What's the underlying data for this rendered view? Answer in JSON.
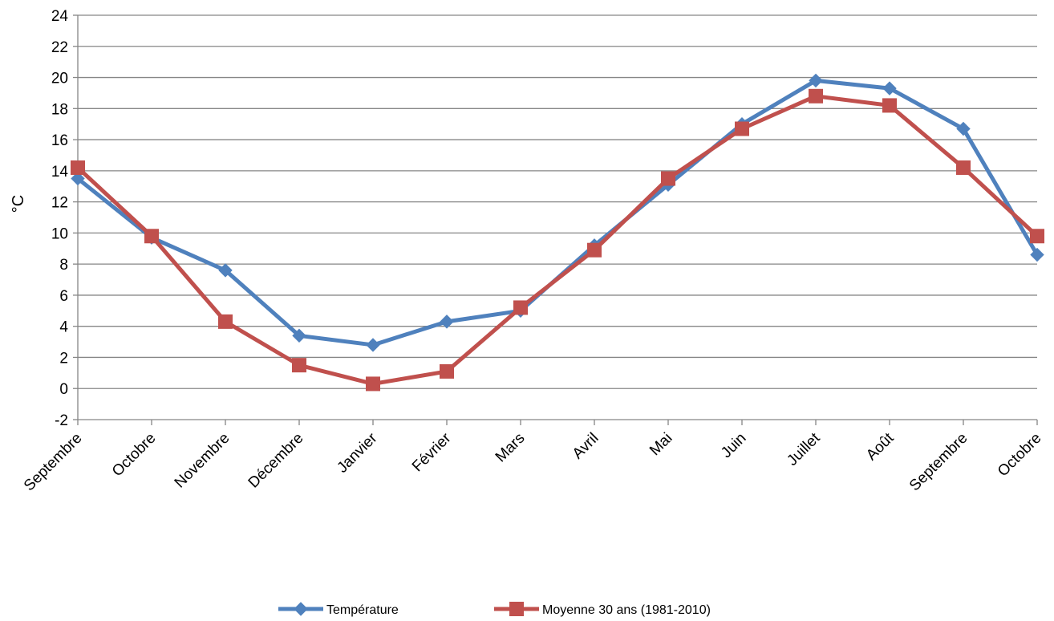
{
  "chart_data": {
    "type": "line",
    "title": "",
    "xlabel": "",
    "ylabel": "°C",
    "ylim": [
      -2,
      24
    ],
    "ytick_step": 2,
    "grid": "horizontal",
    "legend_position": "bottom",
    "categories": [
      "Septembre",
      "Octobre",
      "Novembre",
      "Décembre",
      "Janvier",
      "Février",
      "Mars",
      "Avril",
      "Mai",
      "Juin",
      "Juillet",
      "Août",
      "Septembre",
      "Octobre"
    ],
    "series": [
      {
        "name": "Température",
        "color": "#4F81BD",
        "marker": "diamond",
        "values": [
          13.5,
          9.7,
          7.6,
          3.4,
          2.8,
          4.3,
          5.0,
          9.2,
          13.1,
          17.0,
          19.8,
          19.3,
          16.7,
          8.6
        ]
      },
      {
        "name": "Moyenne 30 ans (1981-2010)",
        "color": "#C0504D",
        "marker": "square",
        "values": [
          14.2,
          9.8,
          4.3,
          1.5,
          0.3,
          1.1,
          5.2,
          8.9,
          13.5,
          16.7,
          18.8,
          18.2,
          14.2,
          9.8
        ]
      }
    ]
  }
}
